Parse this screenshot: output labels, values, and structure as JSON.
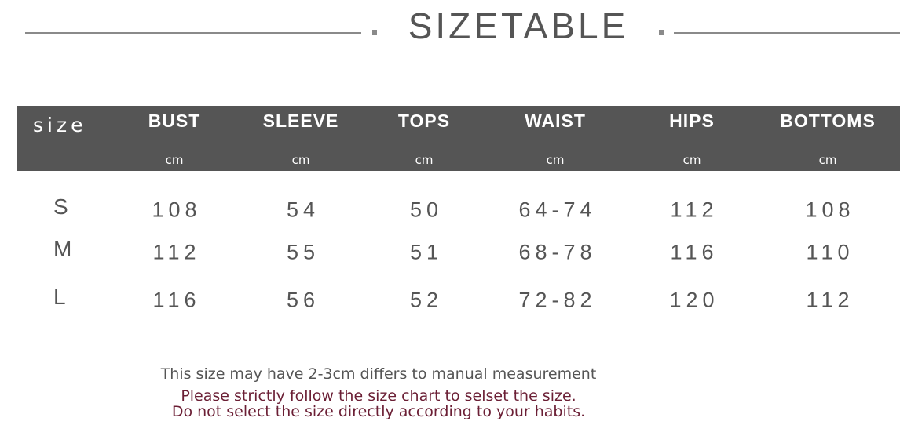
{
  "title": "SIZETABLE",
  "header": {
    "size_label": "size",
    "columns": [
      {
        "name": "BUST",
        "unit": "cm"
      },
      {
        "name": "SLEEVE",
        "unit": "cm"
      },
      {
        "name": "TOPS",
        "unit": "cm"
      },
      {
        "name": "WAIST",
        "unit": "cm"
      },
      {
        "name": "HIPS",
        "unit": "cm"
      },
      {
        "name": "BOTTOMS",
        "unit": "cm"
      }
    ]
  },
  "rows": [
    {
      "size": "S",
      "values": [
        "108",
        "54",
        "50",
        "64-74",
        "112",
        "108"
      ]
    },
    {
      "size": "M",
      "values": [
        "112",
        "55",
        "51",
        "68-78",
        "116",
        "110"
      ]
    },
    {
      "size": "L",
      "values": [
        "116",
        "56",
        "52",
        "72-82",
        "120",
        "112"
      ]
    }
  ],
  "notes": {
    "line1": "This size may have 2-3cm differs to manual measurement",
    "line2": "Please strictly follow the size chart to selset the size.",
    "line3": "Do not select the size directly according to your habits."
  },
  "colors": {
    "header_bg": "#555555",
    "text": "#555555",
    "note_accent": "#6b1f35"
  }
}
